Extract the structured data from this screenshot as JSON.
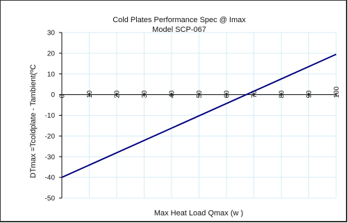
{
  "chart_data": {
    "type": "line",
    "title": "Cold Plates Performance Spec @ Imax",
    "subtitle": "Model SCP-067",
    "xlabel": "Max Heat Load Qmax (w )",
    "ylabel": "DTmax =Tcoldplate - Tambient(ºC",
    "xlim": [
      0,
      100
    ],
    "ylim": [
      -50,
      30
    ],
    "x_ticks": [
      0,
      10,
      20,
      30,
      40,
      50,
      60,
      70,
      80,
      90,
      100
    ],
    "y_ticks": [
      30,
      20,
      10,
      0,
      -10,
      -20,
      -30,
      -40,
      -50
    ],
    "grid": true,
    "series": [
      {
        "color": "#00007f",
        "x": [
          0,
          100
        ],
        "y": [
          -40,
          19.5
        ]
      }
    ]
  }
}
